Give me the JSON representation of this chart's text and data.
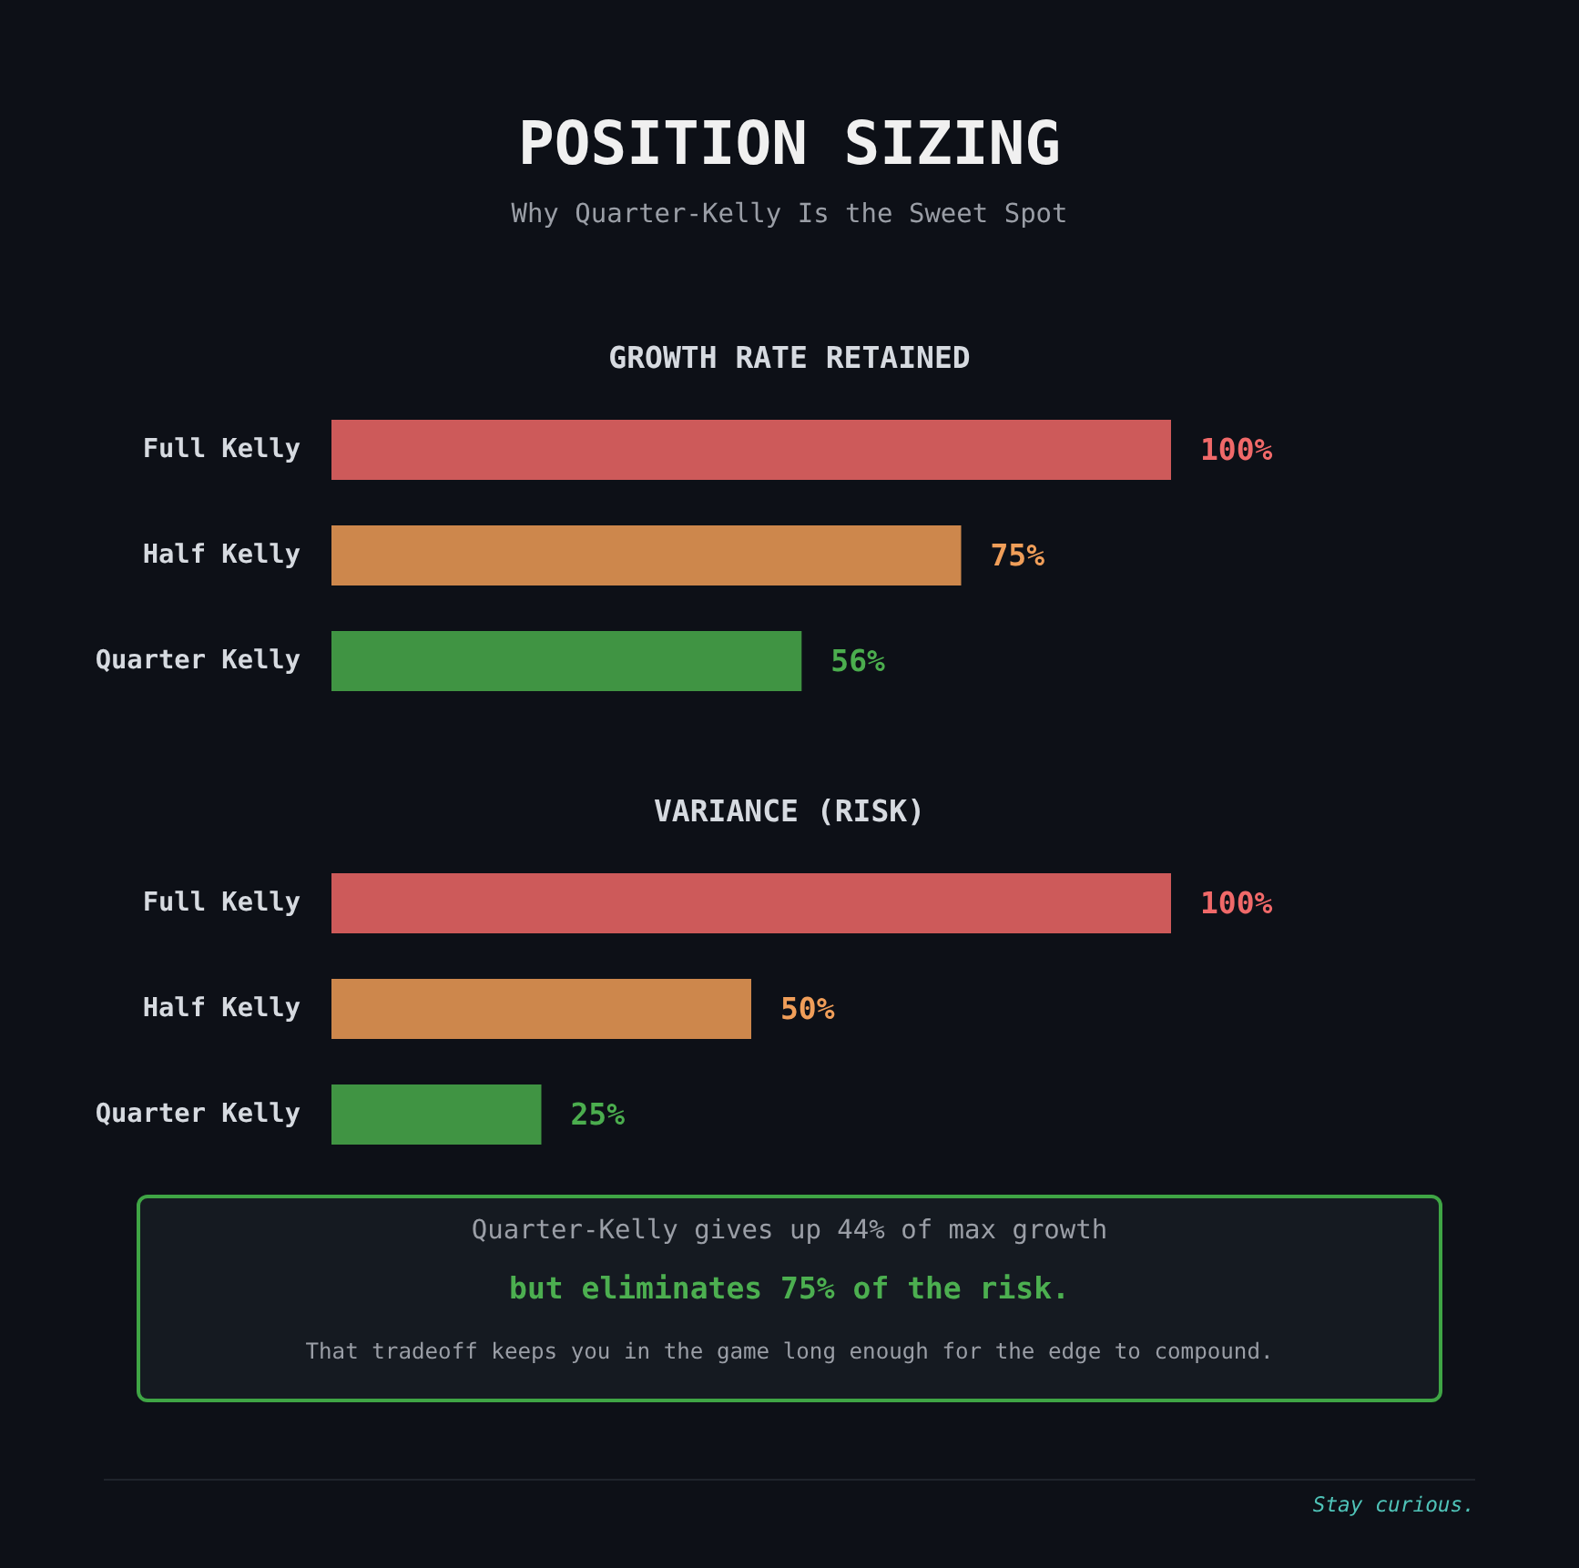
{
  "chart_data": [
    {
      "type": "other",
      "title": "POSITION SIZING",
      "subtitle": "Why Quarter-Kelly Is the Sweet Spot"
    },
    {
      "type": "bar",
      "orientation": "horizontal",
      "title": "GROWTH RATE RETAINED",
      "categories": [
        "Full Kelly",
        "Half Kelly",
        "Quarter Kelly"
      ],
      "values": [
        100,
        75,
        56
      ],
      "colors": [
        "#cd5a5a",
        "#cd874c",
        "#409443"
      ],
      "value_labels": [
        "100%",
        "75%",
        "56%"
      ]
    },
    {
      "type": "bar",
      "orientation": "horizontal",
      "title": "VARIANCE (RISK)",
      "categories": [
        "Full Kelly",
        "Half Kelly",
        "Quarter Kelly"
      ],
      "values": [
        100,
        50,
        25
      ],
      "colors": [
        "#cd5a5a",
        "#cd874c",
        "#409443"
      ],
      "value_labels": [
        "100%",
        "50%",
        "25%"
      ]
    },
    {
      "type": "other",
      "annotations": [
        "Quarter-Kelly gives up 44% of max growth",
        "but eliminates 75% of the risk.",
        "That tradeoff keeps you in the game long enough for the edge to compound.",
        "Stay curious."
      ]
    }
  ]
}
